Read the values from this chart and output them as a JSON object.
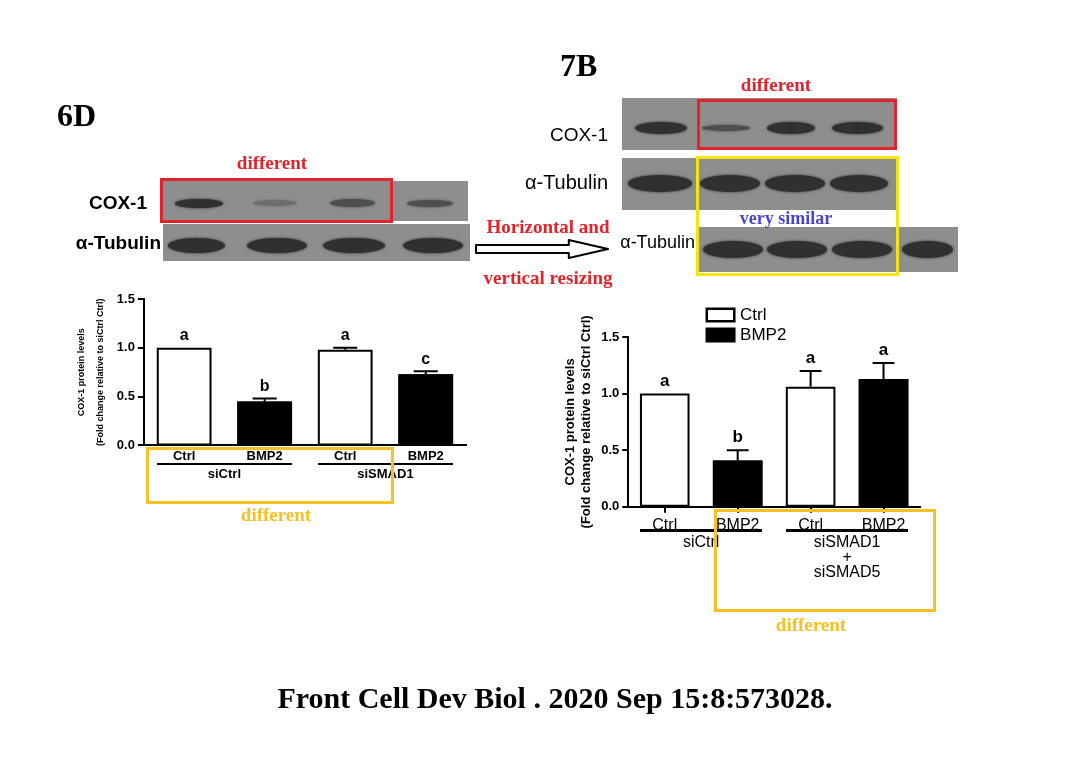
{
  "chart_data": [
    {
      "type": "other",
      "title": "6D",
      "annotations": [
        "different",
        "COX-1",
        "α-Tubulin"
      ]
    },
    {
      "type": "bar",
      "ylabel": "COX-1 protein levels\n(Fold change relative to siCtrl Ctrl)",
      "categories": [
        "Ctrl",
        "BMP2",
        "Ctrl",
        "BMP2"
      ],
      "series": [
        {
          "color": "#ffffff",
          "values": [
            1.0,
            null,
            0.98,
            null
          ],
          "errors": [
            null,
            null,
            [
              0.98,
              1.0
            ],
            null
          ],
          "value_labels": [
            "a",
            null,
            "a",
            null
          ]
        },
        {
          "color": "#000000",
          "values": [
            null,
            0.45,
            null,
            0.73
          ],
          "errors": [
            null,
            [
              0.45,
              0.48
            ],
            null,
            [
              0.73,
              0.76
            ]
          ],
          "value_labels": [
            null,
            "b",
            null,
            "c"
          ]
        }
      ],
      "ylim": [
        0,
        1.5
      ],
      "yticks": [
        {
          "value": 0,
          "label": "0.0"
        },
        {
          "value": 0.5,
          "label": "0.5"
        },
        {
          "value": 1,
          "label": "1.0"
        },
        {
          "value": 1.5,
          "label": "1.5"
        }
      ],
      "annotations": [
        "siCtrl",
        "siSMAD1",
        "different"
      ]
    },
    {
      "type": "other",
      "title": "7B",
      "annotations": [
        "different",
        "COX-1",
        "α-Tubulin",
        "very similar",
        "α-Tubulin",
        "Horizontal and\nvertical resizing"
      ]
    },
    {
      "type": "bar",
      "ylabel": "COX-1 protein levels\n(Fold change relative to siCtrl Ctrl)",
      "categories": [
        "Ctrl",
        "BMP2",
        "Ctrl",
        "BMP2"
      ],
      "series": [
        {
          "name": "Ctrl",
          "color": "#ffffff",
          "values": [
            1.0,
            null,
            1.06,
            null
          ],
          "errors": [
            null,
            null,
            [
              1.06,
              1.2
            ],
            null
          ],
          "value_labels": [
            "a",
            null,
            "a",
            null
          ]
        },
        {
          "name": "BMP2",
          "color": "#000000",
          "values": [
            null,
            0.41,
            null,
            1.13
          ],
          "errors": [
            null,
            [
              0.41,
              0.5
            ],
            null,
            [
              1.13,
              1.27
            ]
          ],
          "value_labels": [
            null,
            "b",
            null,
            "a"
          ]
        }
      ],
      "ylim": [
        0,
        1.5
      ],
      "yticks": [
        {
          "value": 0,
          "label": "0.0"
        },
        0.5,
        {
          "value": 1,
          "label": "1.0"
        },
        1.5
      ],
      "legend": "top",
      "annotations": [
        "siCtrl",
        "siSMAD1\n+\nsiSMAD5",
        "different",
        "Front Cell Dev Biol . 2020 Sep 15:8:573028."
      ]
    }
  ]
}
